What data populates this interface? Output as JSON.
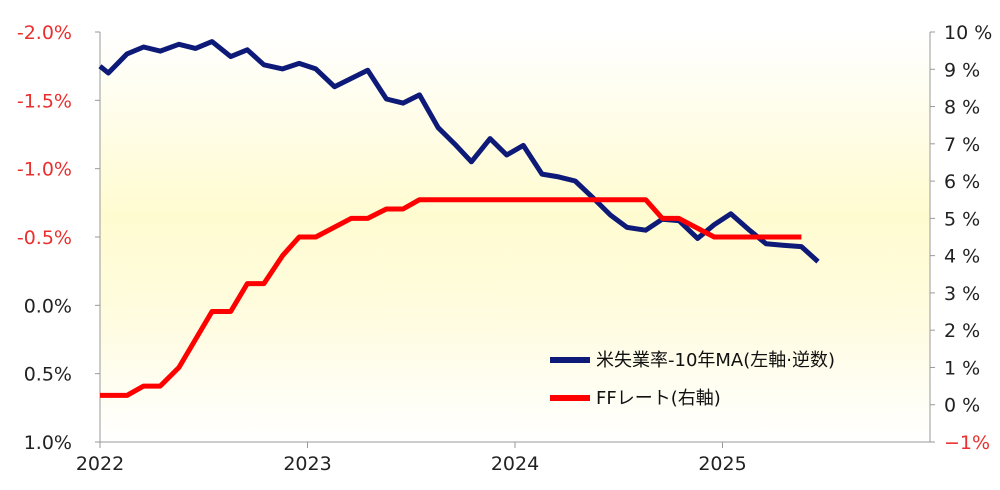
{
  "chart_data": {
    "type": "line",
    "x_range": [
      2022.0,
      2026.0
    ],
    "x_ticks": [
      {
        "value": 2022,
        "label": "2022"
      },
      {
        "value": 2023,
        "label": "2023"
      },
      {
        "value": 2024,
        "label": "2024"
      },
      {
        "value": 2025,
        "label": "2025"
      }
    ],
    "left_axis": {
      "inverted": true,
      "range": [
        -2.0,
        1.0
      ],
      "color": "#e8312f",
      "tick_labels": [
        {
          "value": -2.0,
          "label": "-2.0%",
          "color": "#e8312f"
        },
        {
          "value": -1.5,
          "label": "-1.5%",
          "color": "#e8312f"
        },
        {
          "value": -1.0,
          "label": "-1.0%",
          "color": "#e8312f"
        },
        {
          "value": -0.5,
          "label": "-0.5%",
          "color": "#e8312f"
        },
        {
          "value": 0.0,
          "label": "0.0%",
          "color": "#222222"
        },
        {
          "value": 0.5,
          "label": "0.5%",
          "color": "#222222"
        },
        {
          "value": 1.0,
          "label": "1.0%",
          "color": "#222222"
        }
      ]
    },
    "right_axis": {
      "range": [
        -1,
        10
      ],
      "tick_labels": [
        {
          "value": 10,
          "label": "10 %",
          "color": "#222222"
        },
        {
          "value": 9,
          "label": "9 %",
          "color": "#222222"
        },
        {
          "value": 8,
          "label": "8 %",
          "color": "#222222"
        },
        {
          "value": 7,
          "label": "7 %",
          "color": "#222222"
        },
        {
          "value": 6,
          "label": "6 %",
          "color": "#222222"
        },
        {
          "value": 5,
          "label": "5 %",
          "color": "#222222"
        },
        {
          "value": 4,
          "label": "4 %",
          "color": "#222222"
        },
        {
          "value": 3,
          "label": "3 %",
          "color": "#222222"
        },
        {
          "value": 2,
          "label": "2 %",
          "color": "#222222"
        },
        {
          "value": 1,
          "label": "1 %",
          "color": "#222222"
        },
        {
          "value": 0,
          "label": "0 %",
          "color": "#222222"
        },
        {
          "value": -1,
          "label": "−1%",
          "color": "#e8312f"
        }
      ]
    },
    "grid": false,
    "legend_position": "bottom-right",
    "series": [
      {
        "name": "米失業率-10年MA(左軸·逆数)",
        "axis": "left",
        "color": "#0d1a78",
        "points": [
          [
            2022.0,
            -1.75
          ],
          [
            2022.04,
            -1.7
          ],
          [
            2022.13,
            -1.84
          ],
          [
            2022.21,
            -1.89
          ],
          [
            2022.29,
            -1.86
          ],
          [
            2022.38,
            -1.91
          ],
          [
            2022.46,
            -1.88
          ],
          [
            2022.54,
            -1.93
          ],
          [
            2022.63,
            -1.82
          ],
          [
            2022.71,
            -1.87
          ],
          [
            2022.79,
            -1.76
          ],
          [
            2022.88,
            -1.73
          ],
          [
            2022.96,
            -1.77
          ],
          [
            2023.04,
            -1.73
          ],
          [
            2023.13,
            -1.6
          ],
          [
            2023.21,
            -1.66
          ],
          [
            2023.29,
            -1.72
          ],
          [
            2023.38,
            -1.51
          ],
          [
            2023.46,
            -1.48
          ],
          [
            2023.54,
            -1.54
          ],
          [
            2023.63,
            -1.3
          ],
          [
            2023.71,
            -1.18
          ],
          [
            2023.79,
            -1.05
          ],
          [
            2023.88,
            -1.22
          ],
          [
            2023.96,
            -1.1
          ],
          [
            2024.04,
            -1.17
          ],
          [
            2024.13,
            -0.96
          ],
          [
            2024.21,
            -0.94
          ],
          [
            2024.29,
            -0.91
          ],
          [
            2024.38,
            -0.78
          ],
          [
            2024.46,
            -0.66
          ],
          [
            2024.54,
            -0.57
          ],
          [
            2024.63,
            -0.55
          ],
          [
            2024.71,
            -0.63
          ],
          [
            2024.79,
            -0.62
          ],
          [
            2024.88,
            -0.49
          ],
          [
            2024.96,
            -0.59
          ],
          [
            2025.04,
            -0.67
          ],
          [
            2025.13,
            -0.55
          ],
          [
            2025.21,
            -0.45
          ],
          [
            2025.29,
            -0.44
          ],
          [
            2025.38,
            -0.43
          ],
          [
            2025.46,
            -0.32
          ]
        ]
      },
      {
        "name": "FFレート(右軸)",
        "axis": "right",
        "color": "#ff0000",
        "points": [
          [
            2022.0,
            0.25
          ],
          [
            2022.13,
            0.25
          ],
          [
            2022.21,
            0.5
          ],
          [
            2022.29,
            0.5
          ],
          [
            2022.38,
            1.0
          ],
          [
            2022.54,
            2.5
          ],
          [
            2022.63,
            2.5
          ],
          [
            2022.71,
            3.25
          ],
          [
            2022.79,
            3.25
          ],
          [
            2022.88,
            4.0
          ],
          [
            2022.96,
            4.5
          ],
          [
            2023.04,
            4.5
          ],
          [
            2023.21,
            5.0
          ],
          [
            2023.29,
            5.0
          ],
          [
            2023.38,
            5.25
          ],
          [
            2023.46,
            5.25
          ],
          [
            2023.54,
            5.5
          ],
          [
            2024.63,
            5.5
          ],
          [
            2024.71,
            5.0
          ],
          [
            2024.79,
            5.0
          ],
          [
            2024.96,
            4.5
          ],
          [
            2025.38,
            4.5
          ]
        ]
      }
    ]
  }
}
